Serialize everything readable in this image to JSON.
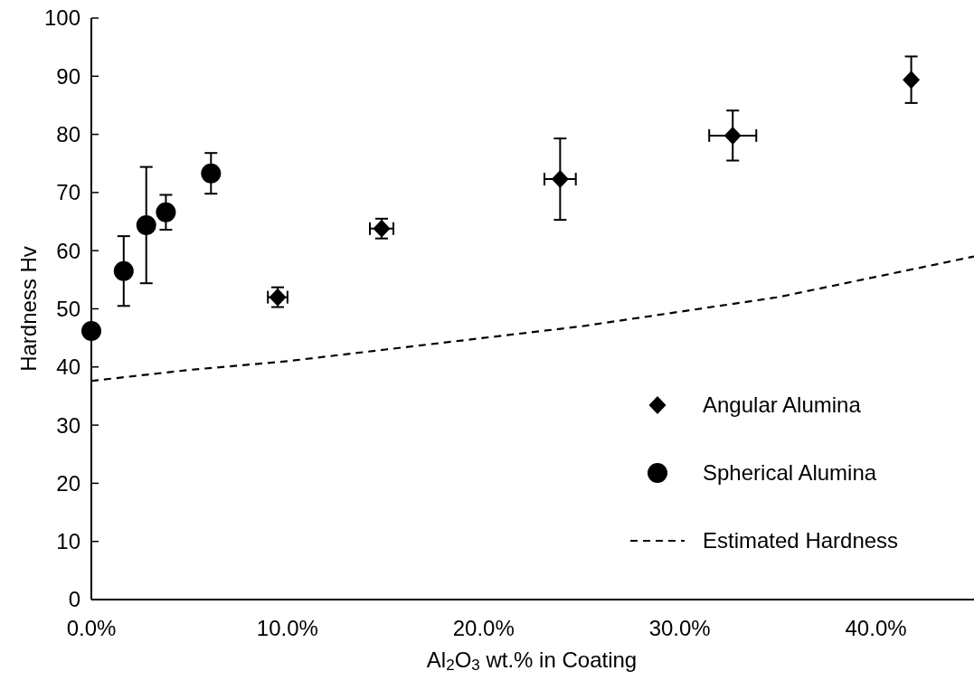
{
  "chart_data": {
    "type": "scatter",
    "xlabel": "Al$_{2}$O$_{3}$ wt.% in Coating",
    "ylabel": "Hardness Hv",
    "xlim": [
      0,
      45
    ],
    "xticks": [
      {
        "value": 0,
        "label": "0.0%"
      },
      {
        "value": 10,
        "label": "10.0%"
      },
      {
        "value": 20,
        "label": "20.0%"
      },
      {
        "value": 30,
        "label": "30.0%"
      },
      {
        "value": 40,
        "label": "40.0%"
      }
    ],
    "ylim": [
      0,
      100
    ],
    "yticks": [
      0,
      10,
      20,
      30,
      40,
      50,
      60,
      70,
      80,
      90,
      100
    ],
    "grid": false,
    "legend": "bottom right",
    "series": [
      {
        "name": "Angular Alumina",
        "color": "#000000",
        "marker": "diamond",
        "x": [
          9.5,
          14.8,
          23.9,
          32.7,
          41.8
        ],
        "values": [
          52,
          63.8,
          72.3,
          79.8,
          89.4
        ],
        "errors": [
          1.7,
          1.7,
          7,
          4.3,
          4
        ],
        "xerrors": [
          0.5,
          0.6,
          0.8,
          1.2,
          null
        ]
      },
      {
        "name": "Spherical Alumina",
        "color": "#000000",
        "marker": "circle",
        "x": [
          0,
          1.65,
          2.8,
          3.8,
          6.1
        ],
        "values": [
          46.2,
          56.5,
          64.4,
          66.6,
          73.3
        ],
        "errors": [
          null,
          6,
          10,
          3,
          3.5
        ]
      },
      {
        "name": "Estimated Hardness",
        "type": "line",
        "color": "#000000",
        "line_style": "dashed",
        "marker": "none",
        "x": [
          0,
          5,
          10,
          15,
          20,
          25,
          30,
          35,
          40,
          45
        ],
        "values": [
          37.6,
          39.5,
          41,
          43,
          45,
          47,
          49.5,
          52,
          55.5,
          59
        ]
      }
    ]
  }
}
